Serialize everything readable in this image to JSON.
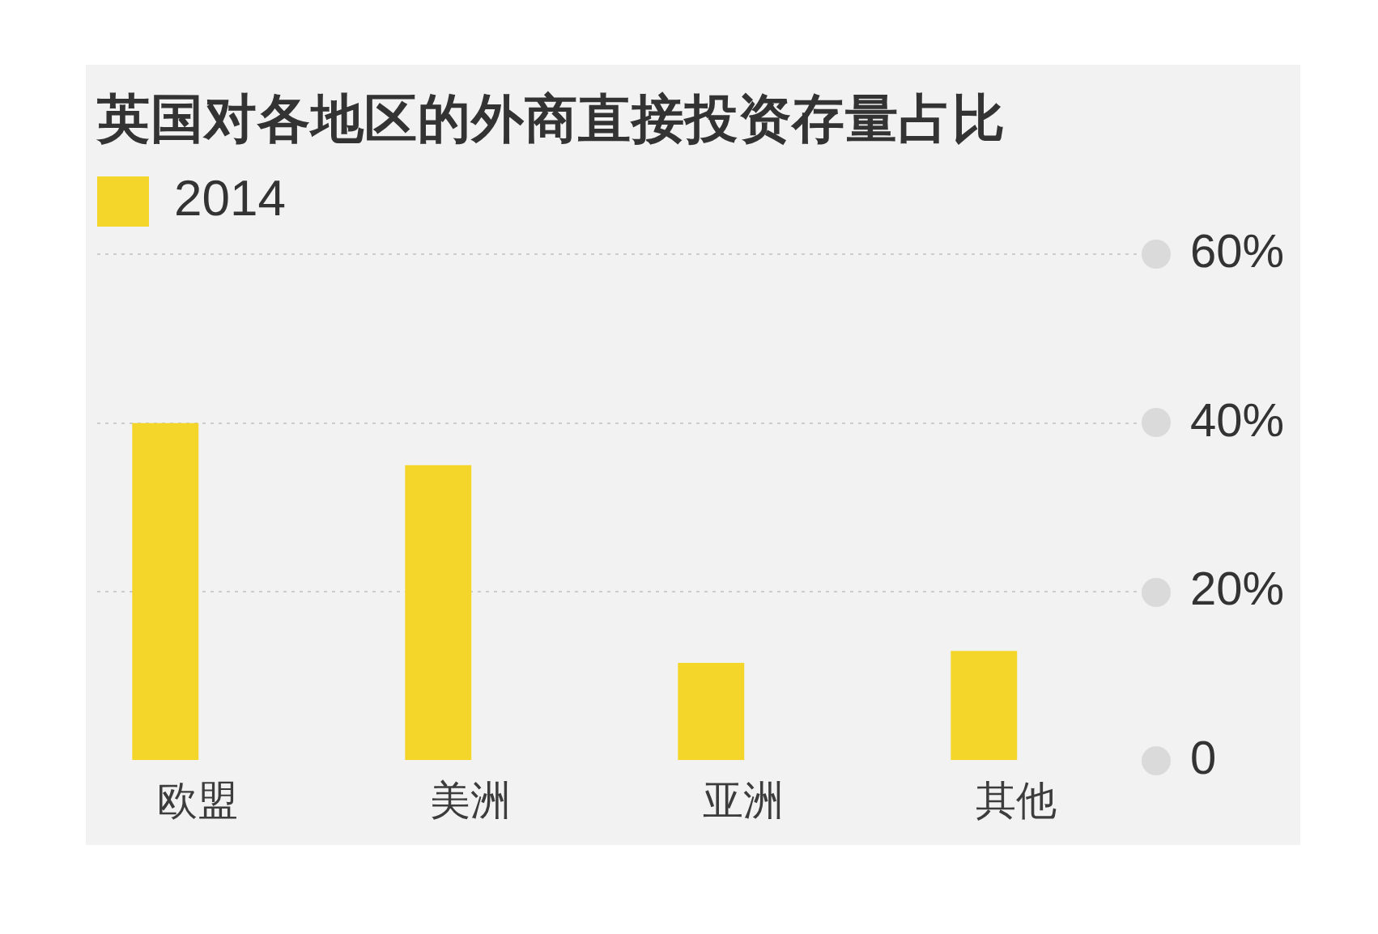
{
  "chart_data": {
    "type": "bar",
    "title": "英国对各地区的外商直接投资存量占比",
    "categories": [
      "欧盟",
      "美洲",
      "亚洲",
      "其他"
    ],
    "series": [
      {
        "name": "2014",
        "color": "#f4d62a",
        "values": [
          40,
          35,
          11.6,
          13
        ]
      }
    ],
    "ylim": [
      0,
      60
    ],
    "yticks": [
      0,
      {
        "value": 20,
        "label": "20%"
      },
      {
        "value": 40,
        "label": "40%"
      },
      {
        "value": 60,
        "label": "60%"
      }
    ],
    "grid": "y",
    "legend": "top left"
  }
}
